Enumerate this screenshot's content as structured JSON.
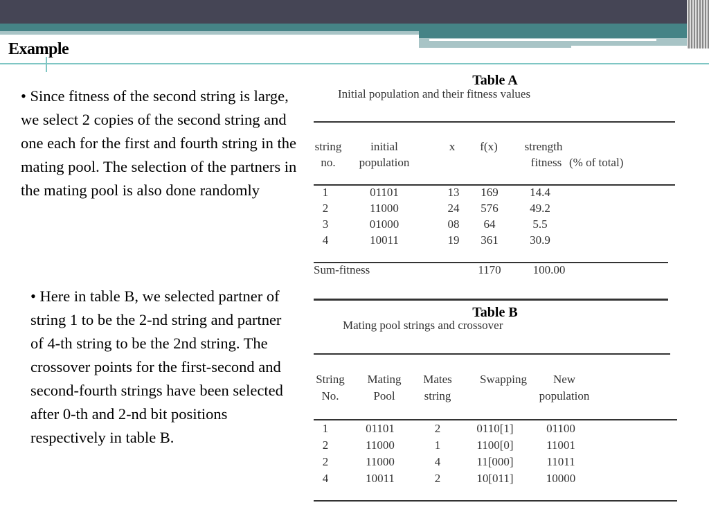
{
  "slide": {
    "title": "Example",
    "bullets": [
      "• Since fitness of the second string is large, we select 2 copies of the second string and one each for the first and fourth string in the mating pool. The selection of the partners in the mating pool is also done randomly",
      "• Here in table B, we selected partner of string 1 to be the 2-nd string and partner of 4-th string to be the 2nd string. The crossover points for the first-second and second-fourth strings have been selected after 0-th and 2-nd bit positions respectively in table B."
    ]
  },
  "colors": {
    "header_dark": "#454555",
    "header_teal": "#458386",
    "accent_light": "#a8c4c6",
    "rule": "#7fc6c4"
  },
  "tableA": {
    "title": "Table A",
    "subtitle": "Initial population and their fitness values",
    "headers": [
      [
        "string",
        "no."
      ],
      [
        "initial",
        "population"
      ],
      [
        "x",
        ""
      ],
      [
        "f(x)",
        ""
      ],
      [
        "strength",
        "fitness"
      ]
    ],
    "header_extra": "(% of total)",
    "rows": [
      [
        "1",
        "01101",
        "13",
        "169",
        "14.4"
      ],
      [
        "2",
        "11000",
        "24",
        "576",
        "49.2"
      ],
      [
        "3",
        "01000",
        "08",
        "64",
        "5.5"
      ],
      [
        "4",
        "10011",
        "19",
        "361",
        "30.9"
      ]
    ],
    "sum_label": "Sum-fitness",
    "sum_fx": "1170",
    "sum_pct": "100.00"
  },
  "tableB": {
    "title": "Table B",
    "subtitle": "Mating pool strings and crossover",
    "headers": [
      [
        "String",
        "No."
      ],
      [
        "Mating",
        "Pool"
      ],
      [
        "Mates",
        "string"
      ],
      [
        "Swapping",
        ""
      ],
      [
        "New",
        "population"
      ]
    ],
    "rows": [
      [
        "1",
        "01101",
        "2",
        "0110[1]",
        "01100"
      ],
      [
        "2",
        "11000",
        "1",
        "1100[0]",
        "11001"
      ],
      [
        "2",
        "11000",
        "4",
        "11[000]",
        "11011"
      ],
      [
        "4",
        "10011",
        "2",
        "10[011]",
        "10000"
      ]
    ]
  }
}
